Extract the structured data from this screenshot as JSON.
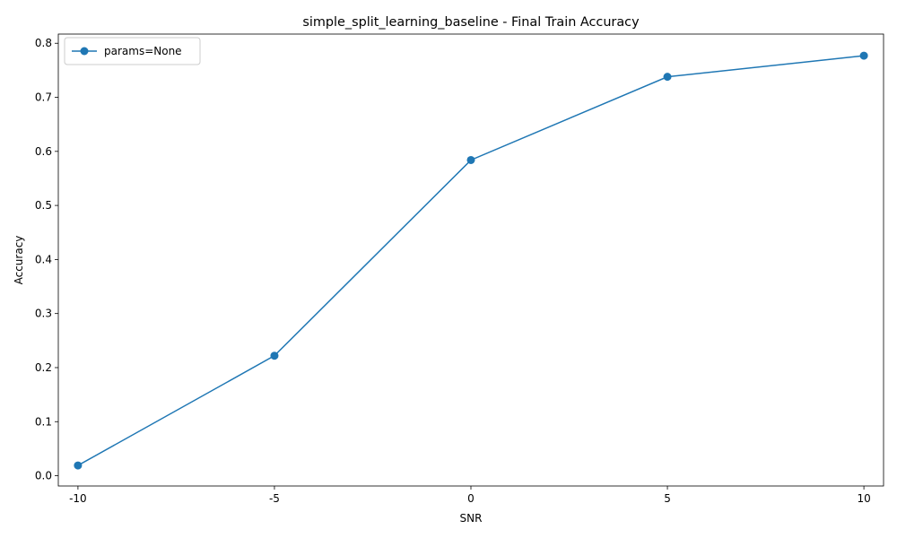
{
  "chart_data": {
    "type": "line",
    "title": "simple_split_learning_baseline - Final Train Accuracy",
    "xlabel": "SNR",
    "ylabel": "Accuracy",
    "categories": [
      "-10",
      "-5",
      "0",
      "5",
      "10"
    ],
    "x": [
      -10,
      -5,
      0,
      5,
      10
    ],
    "xlim": [
      -10.5,
      10.5
    ],
    "ylim": [
      -0.019,
      0.817
    ],
    "yticks": [
      0.0,
      0.1,
      0.2,
      0.3,
      0.4,
      0.5,
      0.6,
      0.7,
      0.8
    ],
    "ytick_labels": [
      "0.0",
      "0.1",
      "0.2",
      "0.3",
      "0.4",
      "0.5",
      "0.6",
      "0.7",
      "0.8"
    ],
    "series": [
      {
        "name": "params=None",
        "values": [
          0.019,
          0.222,
          0.584,
          0.738,
          0.777
        ],
        "color": "#1f77b4",
        "marker": "circle"
      }
    ],
    "legend": {
      "position": "top-left"
    },
    "grid": false
  }
}
